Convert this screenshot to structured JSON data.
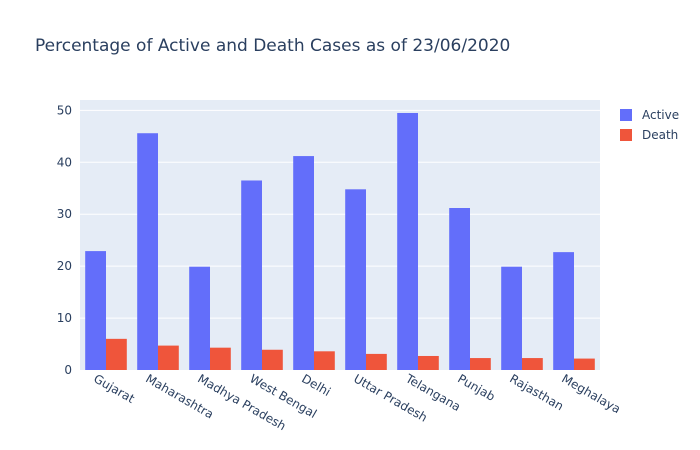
{
  "chart_data": {
    "type": "bar",
    "title": "Percentage of Active and Death Cases as of 23/06/2020",
    "xlabel": "",
    "ylabel": "",
    "ylim": [
      0,
      52
    ],
    "yticks": [
      0,
      10,
      20,
      30,
      40,
      50
    ],
    "grid": true,
    "legend_position": "top-right",
    "categories": [
      "Gujarat",
      "Maharashtra",
      "Madhya Pradesh",
      "West Bengal",
      "Delhi",
      "Uttar Pradesh",
      "Telangana",
      "Punjab",
      "Rajasthan",
      "Meghalaya"
    ],
    "series": [
      {
        "name": "Active",
        "color": "#636efa",
        "values": [
          22.9,
          45.6,
          19.9,
          36.5,
          41.2,
          34.8,
          49.5,
          31.2,
          19.9,
          22.7
        ]
      },
      {
        "name": "Death",
        "color": "#ef553b",
        "values": [
          6.0,
          4.7,
          4.3,
          3.9,
          3.6,
          3.1,
          2.7,
          2.3,
          2.3,
          2.2
        ]
      }
    ]
  }
}
